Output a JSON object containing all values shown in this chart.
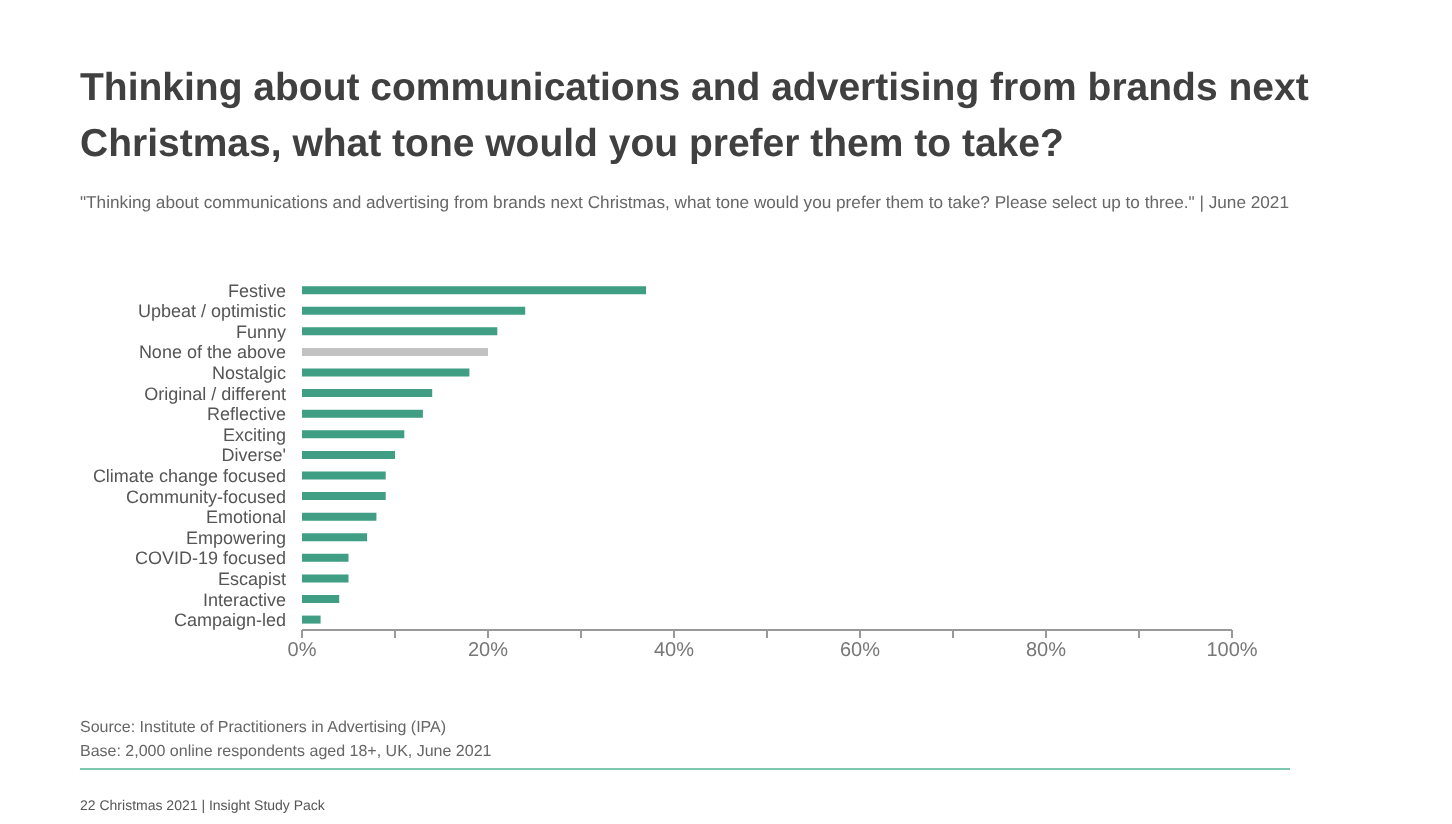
{
  "chart_data": {
    "type": "bar",
    "orientation": "horizontal",
    "title": "Thinking about communications and advertising from brands next Christmas, what tone would you prefer them to take?",
    "subtitle": "\"Thinking about communications and advertising from brands next Christmas, what tone would you prefer them to take? Please select up to three.\" | June 2021",
    "categories": [
      "Festive",
      "Upbeat / optimistic",
      "Funny",
      "None of the above",
      "Nostalgic",
      "Original / different",
      "Reflective",
      "Exciting",
      "Diverse'",
      "Climate change focused",
      "Community-focused",
      "Emotional",
      "Empowering",
      "COVID-19 focused",
      "Escapist",
      "Interactive",
      "Campaign-led"
    ],
    "values": [
      37,
      24,
      21,
      20,
      18,
      14,
      13,
      11,
      10,
      9,
      9,
      8,
      7,
      5,
      5,
      4,
      2
    ],
    "colors": [
      "#3f9e83",
      "#3f9e83",
      "#3f9e83",
      "#c2c2c2",
      "#3f9e83",
      "#3f9e83",
      "#3f9e83",
      "#3f9e83",
      "#3f9e83",
      "#3f9e83",
      "#3f9e83",
      "#3f9e83",
      "#3f9e83",
      "#3f9e83",
      "#3f9e83",
      "#3f9e83",
      "#3f9e83"
    ],
    "xlim": [
      0,
      100
    ],
    "xticks": [
      {
        "value": 0,
        "label": "0%"
      },
      {
        "value": 10,
        "label": null
      },
      {
        "value": 20,
        "label": "20%"
      },
      {
        "value": 30,
        "label": null
      },
      {
        "value": 40,
        "label": "40%"
      },
      {
        "value": 50,
        "label": null
      },
      {
        "value": 60,
        "label": "60%"
      },
      {
        "value": 70,
        "label": null
      },
      {
        "value": 80,
        "label": "80%"
      },
      {
        "value": 90,
        "label": null
      },
      {
        "value": 100,
        "label": "100%"
      }
    ],
    "annotations": [
      "Source: Institute of Practitioners in Advertising (IPA)",
      "Base: 2,000 online respondents aged 18+, UK, June 2021",
      "22 Christmas 2021 | Insight Study Pack"
    ],
    "grid": false
  }
}
